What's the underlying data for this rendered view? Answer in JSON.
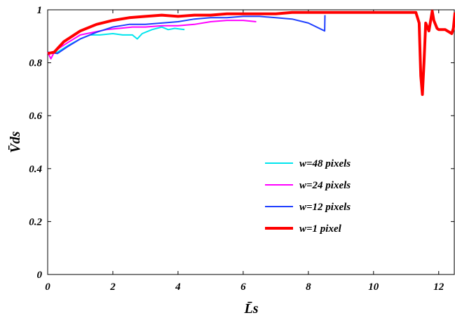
{
  "chart_data": {
    "type": "line",
    "title": "",
    "xlabel": "L̄s",
    "ylabel": "V̄ds",
    "xlim": [
      0,
      12.5
    ],
    "ylim": [
      0,
      1
    ],
    "x_ticks": [
      "0",
      "2",
      "4",
      "6",
      "8",
      "10",
      "12"
    ],
    "y_ticks": [
      "0",
      "0.2",
      "0.4",
      "0.6",
      "0.8",
      "1"
    ],
    "grid": false,
    "legend_position": "center-right",
    "series": [
      {
        "name": "w=48 pixels",
        "color": "#00e5ee",
        "x": [
          0,
          0.3,
          0.7,
          1.0,
          1.3,
          1.6,
          2.0,
          2.3,
          2.6,
          2.75,
          2.9,
          3.2,
          3.5,
          3.7,
          3.9,
          4.2
        ],
        "y": [
          0.835,
          0.84,
          0.87,
          0.89,
          0.905,
          0.905,
          0.91,
          0.905,
          0.905,
          0.89,
          0.91,
          0.925,
          0.935,
          0.925,
          0.93,
          0.925
        ]
      },
      {
        "name": "w=24 pixels",
        "color": "#ff00ff",
        "x": [
          0,
          0.1,
          0.2,
          0.35,
          0.6,
          1.0,
          1.4,
          1.8,
          2.2,
          2.6,
          3.0,
          3.5,
          4.0,
          4.5,
          5.0,
          5.5,
          6.0,
          6.4
        ],
        "y": [
          0.84,
          0.815,
          0.84,
          0.855,
          0.875,
          0.905,
          0.915,
          0.925,
          0.93,
          0.935,
          0.935,
          0.94,
          0.94,
          0.945,
          0.955,
          0.96,
          0.96,
          0.955
        ]
      },
      {
        "name": "w=12 pixels",
        "color": "#1f3fff",
        "x": [
          0,
          0.3,
          0.6,
          1.0,
          1.5,
          2.0,
          2.5,
          3.0,
          3.5,
          4.0,
          4.5,
          5.0,
          5.5,
          6.0,
          6.5,
          7.0,
          7.5,
          8.0,
          8.5,
          8.51
        ],
        "y": [
          0.84,
          0.835,
          0.86,
          0.89,
          0.915,
          0.935,
          0.945,
          0.945,
          0.95,
          0.955,
          0.965,
          0.97,
          0.97,
          0.975,
          0.975,
          0.97,
          0.965,
          0.95,
          0.92,
          0.98
        ]
      },
      {
        "name": "w=1 pixel",
        "color": "#ff0000",
        "x": [
          0,
          0.2,
          0.5,
          1.0,
          1.5,
          2.0,
          2.5,
          3.0,
          3.5,
          4.0,
          4.5,
          5.0,
          5.5,
          6.0,
          6.5,
          7.0,
          7.5,
          8.0,
          9.0,
          10.0,
          11.0,
          11.3,
          11.4,
          11.45,
          11.5,
          11.55,
          11.6,
          11.7,
          11.8,
          11.85,
          11.95,
          12.0,
          12.2,
          12.4,
          12.45,
          12.5
        ],
        "y": [
          0.835,
          0.84,
          0.88,
          0.92,
          0.945,
          0.96,
          0.97,
          0.975,
          0.98,
          0.975,
          0.98,
          0.98,
          0.985,
          0.985,
          0.985,
          0.985,
          0.99,
          0.99,
          0.99,
          0.99,
          0.99,
          0.99,
          0.95,
          0.75,
          0.68,
          0.8,
          0.95,
          0.92,
          0.995,
          0.96,
          0.93,
          0.925,
          0.925,
          0.91,
          0.93,
          0.99
        ]
      }
    ]
  }
}
